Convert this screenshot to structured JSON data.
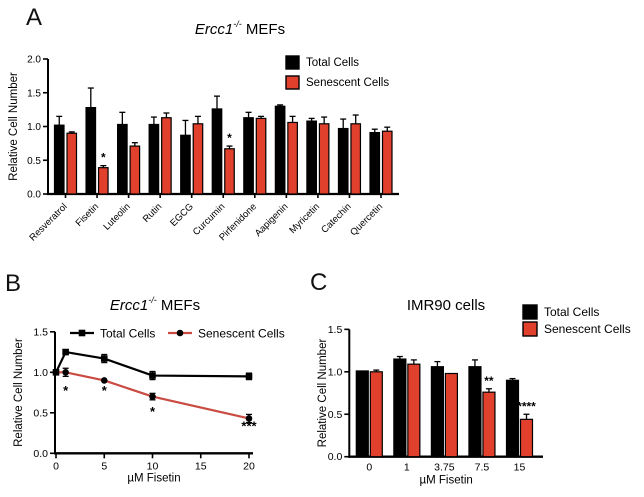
{
  "figure": {
    "background": "#ffffff",
    "panels": [
      {
        "label": "A"
      },
      {
        "label": "B"
      },
      {
        "label": "C"
      }
    ]
  },
  "colors": {
    "total_cells": "#000000",
    "senescent_bar": "#E0402C",
    "senescent_line": "#C94B42"
  },
  "chart_data": [
    {
      "panel": "A",
      "type": "bar",
      "title_italic": "Ercc1",
      "title_sup": "-/-",
      "title_rest": " MEFs",
      "ylabel": "Relative Cell Number",
      "ylim": [
        0,
        2.0
      ],
      "yticks": [
        "0.0",
        "0.5",
        "1.0",
        "1.5",
        "2.0"
      ],
      "grid": false,
      "legend_position": "top-right",
      "categories": [
        "Resveratrol",
        "Fisetin",
        "Luteolin",
        "Rutin",
        "EGCG",
        "Curcumin",
        "Pirfenidone",
        "Aapigenin",
        "Myricetin",
        "Catechin",
        "Quercetin"
      ],
      "series": [
        {
          "name": "Total Cells",
          "color": "#000000",
          "values": [
            1.02,
            1.28,
            1.03,
            1.03,
            0.87,
            1.26,
            1.13,
            1.3,
            1.08,
            0.97,
            0.91
          ],
          "errors": [
            0.13,
            0.29,
            0.18,
            0.11,
            0.22,
            0.19,
            0.08,
            0.02,
            0.04,
            0.14,
            0.05
          ]
        },
        {
          "name": "Senescent Cells",
          "color": "#E0402C",
          "values": [
            0.9,
            0.39,
            0.71,
            1.13,
            1.04,
            0.67,
            1.12,
            1.06,
            1.04,
            1.04,
            0.93
          ],
          "errors": [
            0.02,
            0.03,
            0.05,
            0.07,
            0.11,
            0.04,
            0.03,
            0.09,
            0.1,
            0.13,
            0.06
          ]
        }
      ],
      "annotations": [
        {
          "category_index": 1,
          "series_index": 1,
          "text": "*"
        },
        {
          "category_index": 5,
          "series_index": 1,
          "text": "*"
        }
      ]
    },
    {
      "panel": "B",
      "type": "line",
      "title_italic": "Ercc1",
      "title_sup": "-/-",
      "title_rest": " MEFs",
      "xlabel": "µM Fisetin",
      "ylabel": "Relative Cell Number",
      "xlim": [
        0,
        20
      ],
      "ylim": [
        0,
        1.5
      ],
      "xticks": [
        "0",
        "5",
        "10",
        "15",
        "20"
      ],
      "yticks": [
        "0.0",
        "0.5",
        "1.0",
        "1.5"
      ],
      "grid": false,
      "legend_position": "top-inside",
      "x": [
        0,
        1,
        5,
        10,
        20
      ],
      "series": [
        {
          "name": "Total Cells",
          "line_color": "#000000",
          "marker": "square",
          "marker_color": "#000000",
          "values": [
            1.0,
            1.25,
            1.17,
            0.96,
            0.95
          ],
          "errors": [
            0.02,
            0.03,
            0.05,
            0.05,
            0.04
          ]
        },
        {
          "name": "Senescent Cells",
          "line_color": "#C94B42",
          "marker": "circle",
          "marker_color": "#000000",
          "values": [
            1.0,
            1.0,
            0.9,
            0.7,
            0.43
          ],
          "errors": [
            0.02,
            0.05,
            0.01,
            0.04,
            0.05
          ]
        }
      ],
      "annotations": [
        {
          "x": 1,
          "y": 0.72,
          "text": "*"
        },
        {
          "x": 5,
          "y": 0.72,
          "text": "*"
        },
        {
          "x": 10,
          "y": 0.46,
          "text": "*"
        },
        {
          "x": 20,
          "y": 0.28,
          "text": "***"
        }
      ]
    },
    {
      "panel": "C",
      "type": "bar",
      "title": "IMR90 cells",
      "xlabel": "µM Fisetin",
      "ylabel": "Relative Cell Number",
      "ylim": [
        0,
        1.5
      ],
      "yticks": [
        "0.0",
        "0.5",
        "1.0",
        "1.5"
      ],
      "grid": false,
      "legend_position": "top-right",
      "categories": [
        "0",
        "1",
        "3.75",
        "7.5",
        "15"
      ],
      "series": [
        {
          "name": "Total Cells",
          "color": "#000000",
          "values": [
            1.01,
            1.15,
            1.06,
            1.06,
            0.9
          ],
          "errors": [
            0.01,
            0.03,
            0.06,
            0.08,
            0.02
          ]
        },
        {
          "name": "Senescent Cells",
          "color": "#E0402C",
          "values": [
            1.0,
            1.09,
            0.98,
            0.76,
            0.44
          ],
          "errors": [
            0.02,
            0.05,
            0.01,
            0.04,
            0.06
          ]
        }
      ],
      "annotations": [
        {
          "category_index": 3,
          "series_index": 1,
          "text": "**"
        },
        {
          "category_index": 4,
          "series_index": 1,
          "text": "****"
        }
      ]
    }
  ]
}
